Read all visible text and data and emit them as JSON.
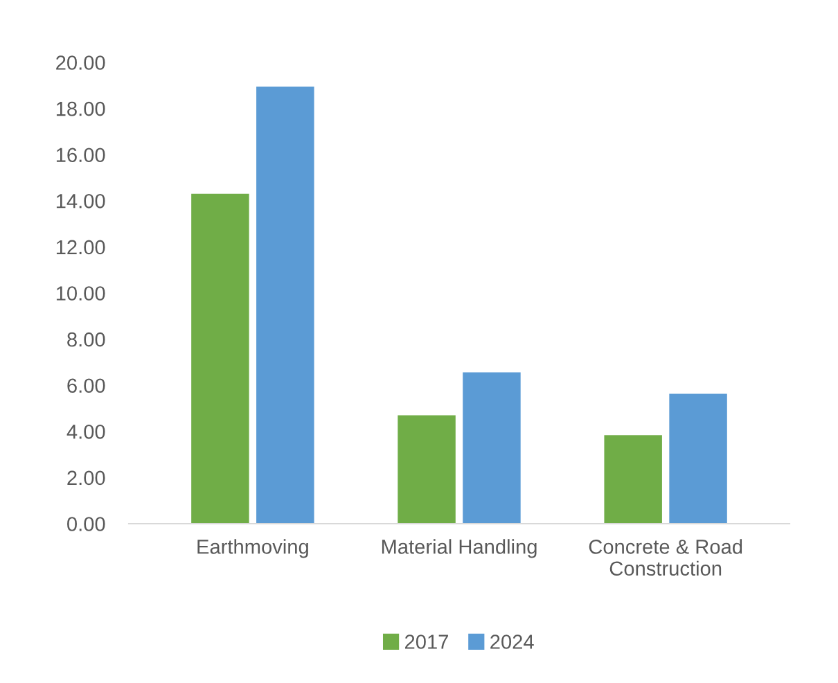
{
  "chart_data": {
    "type": "bar",
    "categories": [
      "Earthmoving",
      "Material Handling",
      "Concrete & Road\nConstruction"
    ],
    "series": [
      {
        "name": "2017",
        "color": "#70ad47",
        "values": [
          14.3,
          4.7,
          3.84
        ]
      },
      {
        "name": "2024",
        "color": "#5b9bd5",
        "values": [
          18.95,
          6.56,
          5.63
        ]
      }
    ],
    "ylim": [
      0,
      20
    ],
    "yticks": [
      {
        "value": 0,
        "label": "0.00"
      },
      {
        "value": 2,
        "label": "2.00"
      },
      {
        "value": 4,
        "label": "4.00"
      },
      {
        "value": 6,
        "label": "6.00"
      },
      {
        "value": 8,
        "label": "8.00"
      },
      {
        "value": 10,
        "label": "10.00"
      },
      {
        "value": 12,
        "label": "12.00"
      },
      {
        "value": 14,
        "label": "14.00"
      },
      {
        "value": 16,
        "label": "16.00"
      },
      {
        "value": 18,
        "label": "18.00"
      },
      {
        "value": 20,
        "label": "20.00"
      }
    ],
    "grid": false,
    "legend": "bottom"
  }
}
